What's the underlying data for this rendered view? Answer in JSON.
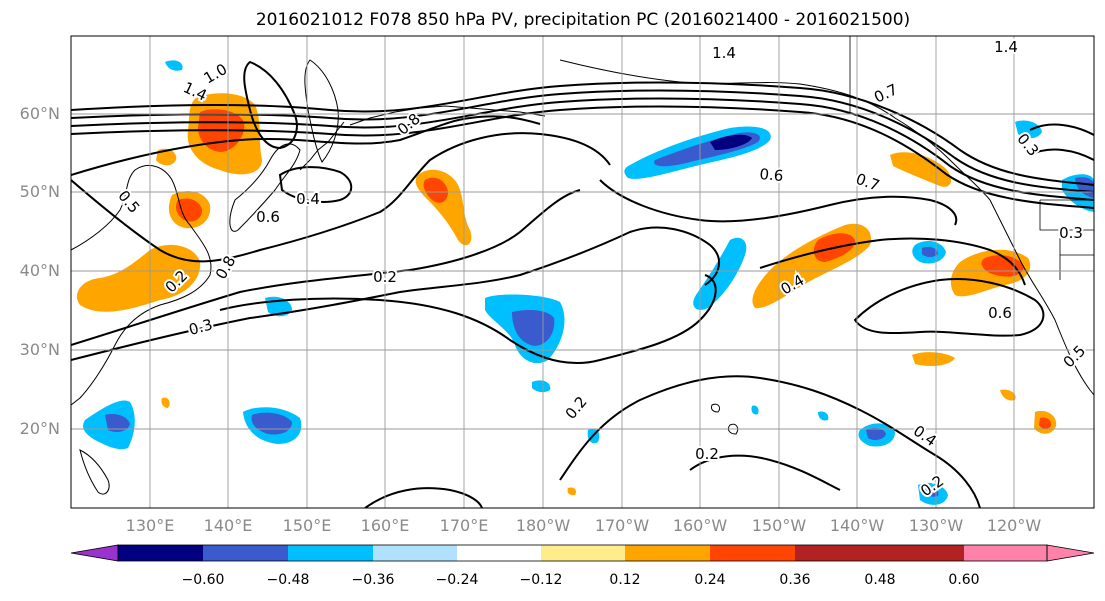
{
  "title": "2016021012 F078 850 hPa PV, precipitation PC (2016021400 - 2016021500)",
  "lat_labels": [
    "60°N",
    "50°N",
    "40°N",
    "30°N",
    "20°N"
  ],
  "lon_labels": [
    "130°E",
    "140°E",
    "150°E",
    "160°E",
    "170°E",
    "180°W",
    "170°W",
    "160°W",
    "150°W",
    "140°W",
    "130°W",
    "120°W"
  ],
  "colorbar": {
    "colors": [
      "#9a32cd",
      "#000080",
      "#3a5bcd",
      "#00bfff",
      "#b0e2ff",
      "#ffffff",
      "#ffec8b",
      "#ffa500",
      "#ff4500",
      "#b22222",
      "#ff82ab"
    ],
    "tick_labels": [
      "−0.60",
      "−0.48",
      "−0.36",
      "−0.24",
      "−0.12",
      "0.12",
      "0.24",
      "0.36",
      "0.48",
      "0.60"
    ]
  },
  "contour_labels": [
    "1.4",
    "1.4",
    "1.0",
    "1.4",
    "0.8",
    "0.6",
    "0.4",
    "0.6",
    "0.7",
    "0.7",
    "0.2",
    "0.3",
    "0.4",
    "0.3",
    "0.6",
    "0.2",
    "0.2",
    "0.2",
    "0.4",
    "0.2",
    "0.8",
    "0.5",
    "0.5",
    "0.3"
  ]
}
